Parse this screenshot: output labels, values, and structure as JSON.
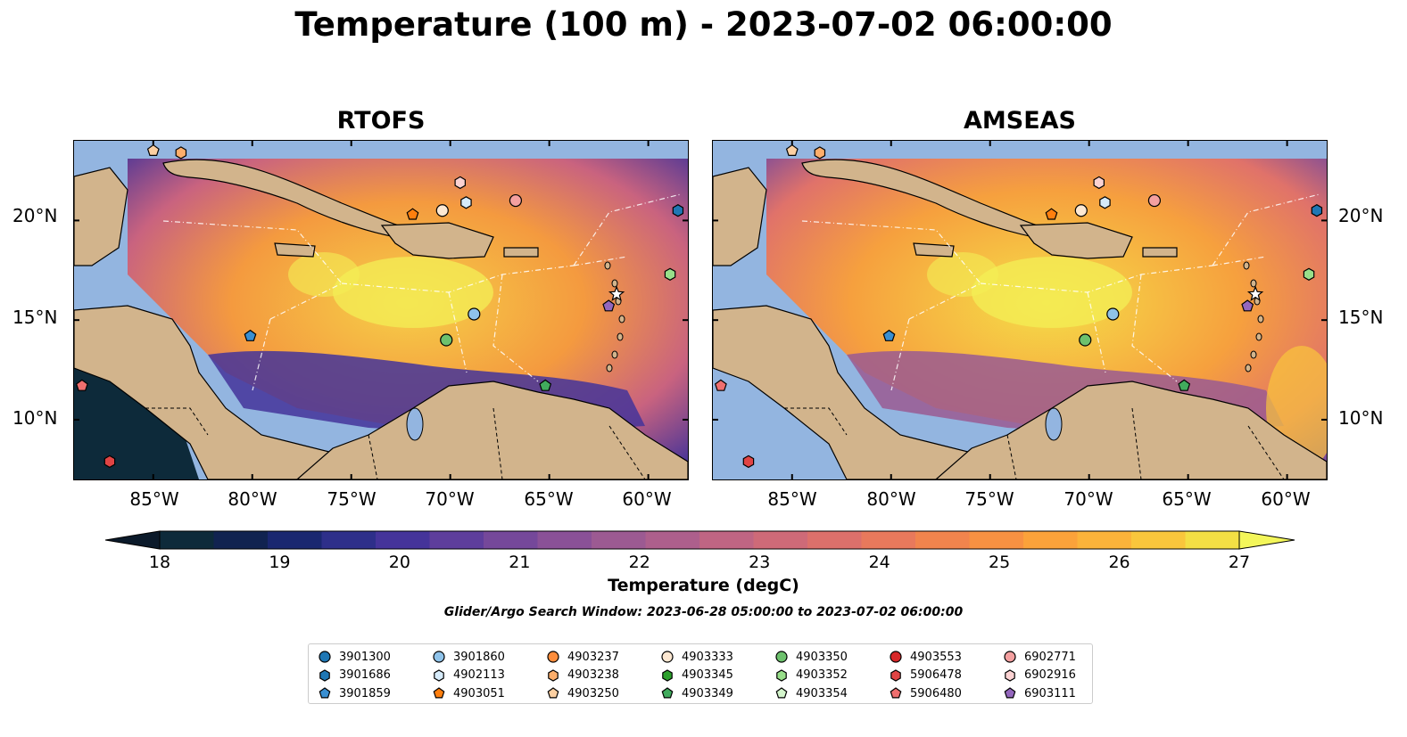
{
  "title": "Temperature (100 m) - 2023-07-02 06:00:00",
  "panels": [
    {
      "title": "RTOFS"
    },
    {
      "title": "AMSEAS"
    }
  ],
  "axes": {
    "x_ticks": [
      "85°W",
      "80°W",
      "75°W",
      "70°W",
      "65°W",
      "60°W"
    ],
    "y_ticks": [
      "20°N",
      "15°N",
      "10°N"
    ]
  },
  "colorbar": {
    "label": "Temperature (degC)",
    "ticks": [
      "18",
      "19",
      "20",
      "21",
      "22",
      "23",
      "24",
      "25",
      "26",
      "27"
    ],
    "colors": [
      "#0d2a3a",
      "#112350",
      "#1a2770",
      "#2e2f8a",
      "#45349a",
      "#5e3e9c",
      "#75489a",
      "#8a5197",
      "#9c5a92",
      "#ad5f8c",
      "#bf6583",
      "#ce6a78",
      "#dc706b",
      "#e8795c",
      "#f1844d",
      "#f79142",
      "#fba23a",
      "#fbb33a",
      "#f9c63c",
      "#f3df44"
    ],
    "under_color": "#0b1a2a",
    "over_color": "#f3f65a"
  },
  "search_window": "Glider/Argo Search Window: 2023-06-28 05:00:00 to 2023-07-02 06:00:00",
  "legend": {
    "items": [
      {
        "id": "3901300",
        "marker": "circle",
        "color": "#1f77b4"
      },
      {
        "id": "3901686",
        "marker": "hexagon",
        "color": "#1f77b4"
      },
      {
        "id": "3901859",
        "marker": "pentagon",
        "color": "#3a8fd1"
      },
      {
        "id": "3901860",
        "marker": "circle",
        "color": "#8fc3ea"
      },
      {
        "id": "4902113",
        "marker": "hexagon",
        "color": "#d6ebfa"
      },
      {
        "id": "4903051",
        "marker": "pentagon",
        "color": "#ff7f0e"
      },
      {
        "id": "4903237",
        "marker": "circle",
        "color": "#fd8d3c"
      },
      {
        "id": "4903238",
        "marker": "hexagon",
        "color": "#fdae6b"
      },
      {
        "id": "4903250",
        "marker": "pentagon",
        "color": "#fdd0a2"
      },
      {
        "id": "4903333",
        "marker": "circle",
        "color": "#fde8d2"
      },
      {
        "id": "4903345",
        "marker": "hexagon",
        "color": "#2ca02c"
      },
      {
        "id": "4903349",
        "marker": "pentagon",
        "color": "#41ab5d"
      },
      {
        "id": "4903350",
        "marker": "circle",
        "color": "#6dc16d"
      },
      {
        "id": "4903352",
        "marker": "hexagon",
        "color": "#98df8a"
      },
      {
        "id": "4903354",
        "marker": "pentagon",
        "color": "#d4f5cc"
      },
      {
        "id": "4903553",
        "marker": "circle",
        "color": "#d62728"
      },
      {
        "id": "5906478",
        "marker": "hexagon",
        "color": "#e04444"
      },
      {
        "id": "5906480",
        "marker": "pentagon",
        "color": "#ef6f6f"
      },
      {
        "id": "6902771",
        "marker": "circle",
        "color": "#f4a0a0"
      },
      {
        "id": "6902916",
        "marker": "hexagon",
        "color": "#fbd2d2"
      },
      {
        "id": "6903111",
        "marker": "pentagon",
        "color": "#9467bd"
      }
    ]
  },
  "map_extent": {
    "lon": [
      -89,
      -58
    ],
    "lat": [
      7,
      24
    ]
  },
  "platforms": [
    {
      "id": "3901686",
      "lon": -58.5,
      "lat": 20.5
    },
    {
      "id": "3901859",
      "lon": -80.1,
      "lat": 14.2
    },
    {
      "id": "3901860",
      "lon": -68.8,
      "lat": 15.3
    },
    {
      "id": "4902113",
      "lon": -69.2,
      "lat": 20.9
    },
    {
      "id": "4903051",
      "lon": -71.9,
      "lat": 20.3
    },
    {
      "id": "4903238",
      "lon": -83.6,
      "lat": 23.4
    },
    {
      "id": "4903250",
      "lon": -85.0,
      "lat": 23.5
    },
    {
      "id": "4903333",
      "lon": -70.4,
      "lat": 20.5
    },
    {
      "id": "4903349",
      "lon": -65.2,
      "lat": 11.7
    },
    {
      "id": "4903350",
      "lon": -70.2,
      "lat": 14.0
    },
    {
      "id": "4903352",
      "lon": -58.9,
      "lat": 17.3
    },
    {
      "id": "5906478",
      "lon": -87.2,
      "lat": 7.9
    },
    {
      "id": "5906480",
      "lon": -88.6,
      "lat": 11.7
    },
    {
      "id": "6902771",
      "lon": -66.7,
      "lat": 21.0
    },
    {
      "id": "6902916",
      "lon": -69.5,
      "lat": 21.9
    },
    {
      "id": "6903111",
      "lon": -62.0,
      "lat": 15.7
    }
  ]
}
